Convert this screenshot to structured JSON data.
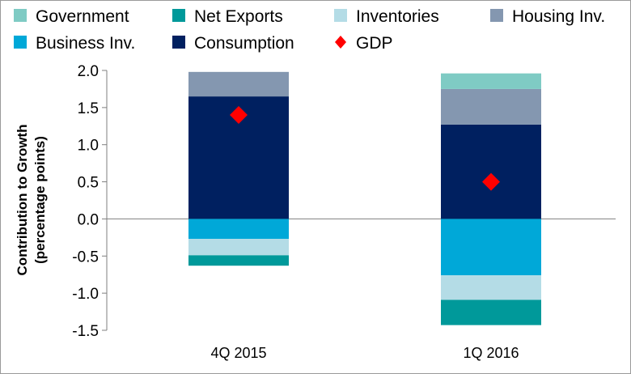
{
  "chart_data": {
    "type": "bar",
    "stacked": true,
    "categories": [
      "4Q 2015",
      "1Q 2016"
    ],
    "series": [
      {
        "name": "Consumption",
        "color": "#002060",
        "values": [
          1.65,
          1.27
        ]
      },
      {
        "name": "Housing Inv.",
        "color": "#8497B0",
        "values": [
          0.33,
          0.48
        ]
      },
      {
        "name": "Government",
        "color": "#7FCBC4",
        "values": [
          0.0,
          0.21
        ]
      },
      {
        "name": "Business Inv.",
        "color": "#00A8D8",
        "values": [
          -0.27,
          -0.76
        ]
      },
      {
        "name": "Inventories",
        "color": "#B4DCE6",
        "values": [
          -0.22,
          -0.33
        ]
      },
      {
        "name": "Net Exports",
        "color": "#00999A",
        "values": [
          -0.14,
          -0.34
        ]
      }
    ],
    "markers": {
      "name": "GDP",
      "color": "#FF0000",
      "shape": "diamond",
      "values": [
        1.4,
        0.5
      ]
    },
    "legend": {
      "placement": "top",
      "order": [
        "Government",
        "Net Exports",
        "Inventories",
        "Housing Inv.",
        "Business Inv.",
        "Consumption",
        "GDP"
      ]
    },
    "ylabel": "Contribution to Growth (percentage points)",
    "ylabel_lines": [
      "Contribution to Growth",
      "(percentage points)"
    ],
    "xlabel": "",
    "ylim": [
      -1.5,
      2.0
    ],
    "yticks": [
      -1.5,
      -1.0,
      -0.5,
      0.0,
      0.5,
      1.0,
      1.5,
      2.0
    ],
    "ytick_labels": [
      "-1.5",
      "-1.0",
      "-0.5",
      "0.0",
      "0.5",
      "1.0",
      "1.5",
      "2.0"
    ],
    "grid": false
  }
}
